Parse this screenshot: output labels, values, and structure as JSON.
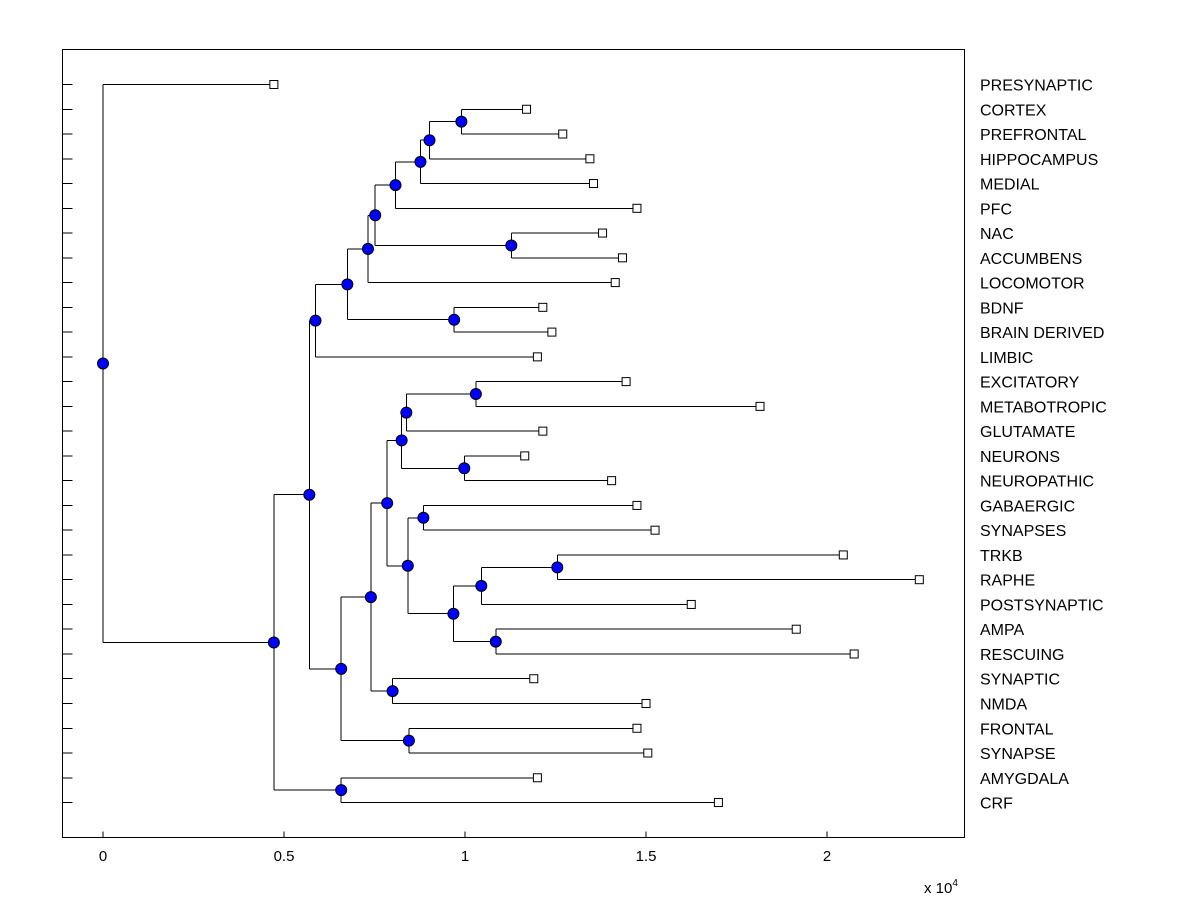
{
  "chart_data": {
    "type": "dendrogram",
    "title": "",
    "xlabel": "",
    "ylabel": "",
    "x_multiplier_label": {
      "prefix": "x 10",
      "exponent": "4"
    },
    "xlim": [
      -0.11,
      2.37
    ],
    "xticks": [
      {
        "value": 0,
        "label": "0"
      },
      {
        "value": 0.5,
        "label": "0.5"
      },
      {
        "value": 1,
        "label": "1"
      },
      {
        "value": 1.5,
        "label": "1.5"
      },
      {
        "value": 2,
        "label": "2"
      }
    ],
    "node_color": "#0000ff",
    "leaves": [
      {
        "label": "PRESYNAPTIC",
        "value": 0.472
      },
      {
        "label": "CORTEX",
        "value": 1.17
      },
      {
        "label": "PREFRONTAL",
        "value": 1.27
      },
      {
        "label": "HIPPOCAMPUS",
        "value": 1.345
      },
      {
        "label": "MEDIAL",
        "value": 1.355
      },
      {
        "label": "PFC",
        "value": 1.475
      },
      {
        "label": "NAC",
        "value": 1.38
      },
      {
        "label": "ACCUMBENS",
        "value": 1.435
      },
      {
        "label": "LOCOMOTOR",
        "value": 1.415
      },
      {
        "label": "BDNF",
        "value": 1.215
      },
      {
        "label": "BRAIN DERIVED",
        "value": 1.24
      },
      {
        "label": "LIMBIC",
        "value": 1.2
      },
      {
        "label": "EXCITATORY",
        "value": 1.445
      },
      {
        "label": "METABOTROPIC",
        "value": 1.815
      },
      {
        "label": "GLUTAMATE",
        "value": 1.215
      },
      {
        "label": "NEURONS",
        "value": 1.165
      },
      {
        "label": "NEUROPATHIC",
        "value": 1.405
      },
      {
        "label": "GABAERGIC",
        "value": 1.475
      },
      {
        "label": "SYNAPSES",
        "value": 1.525
      },
      {
        "label": "TRKB",
        "value": 2.045
      },
      {
        "label": "RAPHE",
        "value": 2.255
      },
      {
        "label": "POSTSYNAPTIC",
        "value": 1.625
      },
      {
        "label": "AMPA",
        "value": 1.915
      },
      {
        "label": "RESCUING",
        "value": 2.075
      },
      {
        "label": "SYNAPTIC",
        "value": 1.19
      },
      {
        "label": "NMDA",
        "value": 1.5
      },
      {
        "label": "FRONTAL",
        "value": 1.475
      },
      {
        "label": "SYNAPSE",
        "value": 1.505
      },
      {
        "label": "AMYGDALA",
        "value": 1.2
      },
      {
        "label": "CRF",
        "value": 1.7
      }
    ],
    "tree": {
      "v": 0,
      "children": [
        {
          "leaf": 0
        },
        {
          "v": 0.472,
          "children": [
            {
              "v": 0.57,
              "children": [
                {
                  "v": 0.587,
                  "children": [
                    {
                      "v": 0.675,
                      "children": [
                        {
                          "v": 0.732,
                          "children": [
                            {
                              "v": 0.752,
                              "children": [
                                {
                                  "v": 0.808,
                                  "children": [
                                    {
                                      "v": 0.877,
                                      "children": [
                                        {
                                          "v": 0.902,
                                          "children": [
                                            {
                                              "v": 0.99,
                                              "children": [
                                                {
                                                  "leaf": 1
                                                },
                                                {
                                                  "leaf": 2
                                                }
                                              ]
                                            },
                                            {
                                              "leaf": 3
                                            }
                                          ]
                                        },
                                        {
                                          "leaf": 4
                                        }
                                      ]
                                    },
                                    {
                                      "leaf": 5
                                    }
                                  ]
                                },
                                {
                                  "v": 1.128,
                                  "children": [
                                    {
                                      "leaf": 6
                                    },
                                    {
                                      "leaf": 7
                                    }
                                  ]
                                }
                              ]
                            },
                            {
                              "leaf": 8
                            }
                          ]
                        },
                        {
                          "v": 0.97,
                          "children": [
                            {
                              "leaf": 9
                            },
                            {
                              "leaf": 10
                            }
                          ]
                        }
                      ]
                    },
                    {
                      "leaf": 11
                    }
                  ]
                },
                {
                  "v": 0.658,
                  "children": [
                    {
                      "v": 0.74,
                      "children": [
                        {
                          "v": 0.785,
                          "children": [
                            {
                              "v": 0.825,
                              "children": [
                                {
                                  "v": 0.838,
                                  "children": [
                                    {
                                      "v": 1.03,
                                      "children": [
                                        {
                                          "leaf": 12
                                        },
                                        {
                                          "leaf": 13
                                        }
                                      ]
                                    },
                                    {
                                      "leaf": 14
                                    }
                                  ]
                                },
                                {
                                  "v": 0.998,
                                  "children": [
                                    {
                                      "leaf": 15
                                    },
                                    {
                                      "leaf": 16
                                    }
                                  ]
                                }
                              ]
                            },
                            {
                              "v": 0.842,
                              "children": [
                                {
                                  "v": 0.885,
                                  "children": [
                                    {
                                      "leaf": 17
                                    },
                                    {
                                      "leaf": 18
                                    }
                                  ]
                                },
                                {
                                  "v": 0.968,
                                  "children": [
                                    {
                                      "v": 1.045,
                                      "children": [
                                        {
                                          "v": 1.255,
                                          "children": [
                                            {
                                              "leaf": 19
                                            },
                                            {
                                              "leaf": 20
                                            }
                                          ]
                                        },
                                        {
                                          "leaf": 21
                                        }
                                      ]
                                    },
                                    {
                                      "v": 1.085,
                                      "children": [
                                        {
                                          "leaf": 22
                                        },
                                        {
                                          "leaf": 23
                                        }
                                      ]
                                    }
                                  ]
                                }
                              ]
                            }
                          ]
                        },
                        {
                          "v": 0.8,
                          "children": [
                            {
                              "leaf": 24
                            },
                            {
                              "leaf": 25
                            }
                          ]
                        }
                      ]
                    },
                    {
                      "v": 0.845,
                      "children": [
                        {
                          "leaf": 26
                        },
                        {
                          "leaf": 27
                        }
                      ]
                    }
                  ]
                }
              ]
            },
            {
              "v": 0.658,
              "children": [
                {
                  "leaf": 28
                },
                {
                  "leaf": 29
                }
              ]
            }
          ]
        }
      ]
    }
  }
}
